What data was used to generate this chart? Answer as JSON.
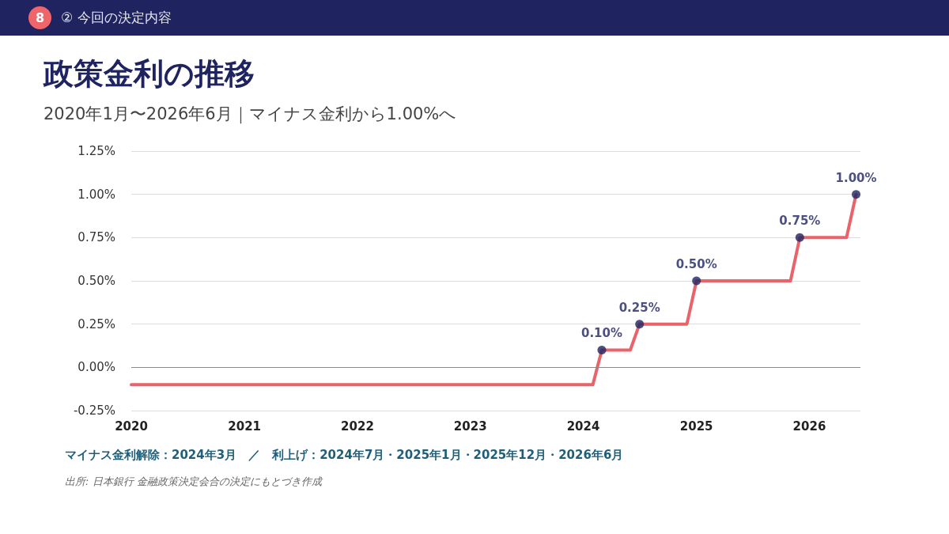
{
  "chart_data": {
    "type": "line",
    "title": "政策金利の推移",
    "subtitle": "2020年1月〜2026年6月｜マイナス金利から1.00%へ",
    "annotations": [
      "8",
      "② 今回の決定内容",
      "マイナス金利解除：2024年3月　／　利上げ：2024年7月・2025年1月・2025年12月・2026年6月",
      "出所: 日本銀行 金融政策決定会合の決定にもとづき作成"
    ],
    "series": [
      {
        "color": "#e9636a",
        "x": [
          "2020-01",
          "2024-02",
          "2024-03",
          "2024-06",
          "2024-07",
          "2024-12",
          "2025-01",
          "2025-11",
          "2025-12",
          "2026-05",
          "2026-06"
        ],
        "values": [
          -0.1,
          -0.1,
          0.1,
          0.1,
          0.25,
          0.25,
          0.5,
          0.5,
          0.75,
          0.75,
          1.0
        ]
      },
      {
        "type": "scatter",
        "color": "#1f2461",
        "x": [
          "2024-03",
          "2024-07",
          "2025-01",
          "2025-12",
          "2026-06"
        ],
        "values": [
          0.1,
          0.25,
          0.5,
          0.75,
          1.0
        ],
        "value_labels": [
          "0.10%",
          "0.25%",
          "0.50%",
          "0.75%",
          "1.00%"
        ]
      }
    ],
    "xlim": [
      "2020-01",
      "2026-06-15"
    ],
    "xticks": [
      "2020",
      "2021",
      "2022",
      "2023",
      "2024",
      "2025",
      "2026"
    ],
    "ylim": [
      -0.25,
      1.25
    ],
    "yticks": [
      {
        "value": -0.25,
        "label": "-0.25%"
      },
      {
        "value": 0,
        "label": "0.00%"
      },
      {
        "value": 0.25,
        "label": "0.25%"
      },
      {
        "value": 0.5,
        "label": "0.50%"
      },
      {
        "value": 0.75,
        "label": "0.75%"
      },
      {
        "value": 1.0,
        "label": "1.00%"
      },
      {
        "value": 1.25,
        "label": "1.25%"
      }
    ],
    "grid": "y",
    "ref_lines": [
      {
        "axis": "y",
        "value": 0,
        "color": "#8a8a8a"
      }
    ]
  }
}
